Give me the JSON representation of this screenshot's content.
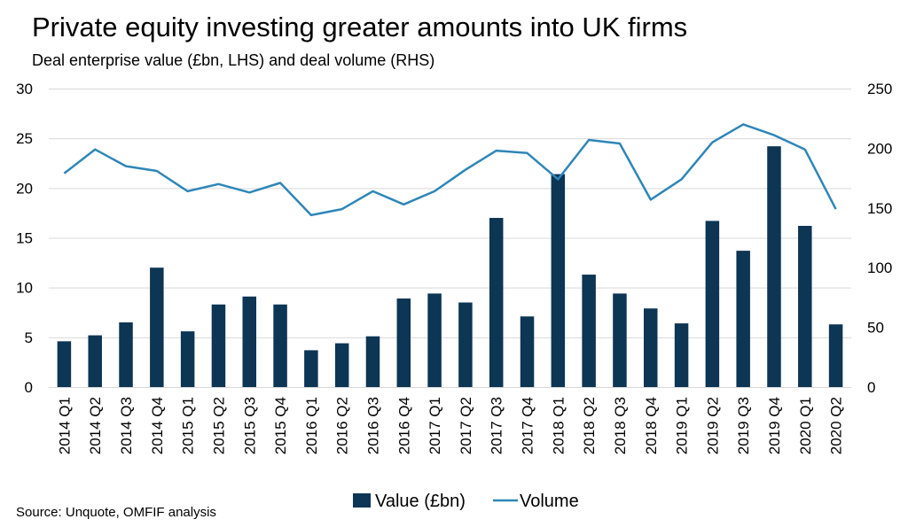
{
  "chart_data": {
    "type": "bar",
    "title": "Private equity investing greater amounts into UK firms",
    "subtitle": "Deal enterprise value (£bn, LHS) and deal volume (RHS)",
    "source": "Source: Unquote, OMFIF analysis",
    "categories": [
      "2014 Q1",
      "2014 Q2",
      "2014 Q3",
      "2014 Q4",
      "2015 Q1",
      "2015 Q2",
      "2015 Q3",
      "2015 Q4",
      "2016 Q1",
      "2016 Q2",
      "2016 Q3",
      "2016 Q4",
      "2017 Q1",
      "2017 Q2",
      "2017 Q3",
      "2017 Q4",
      "2018 Q1",
      "2018 Q2",
      "2018 Q3",
      "2018 Q4",
      "2019 Q1",
      "2019 Q2",
      "2019 Q3",
      "2019 Q4",
      "2020 Q1",
      "2020 Q2"
    ],
    "y_left": {
      "min": 0,
      "max": 30,
      "ticks": [
        "0",
        "5",
        "10",
        "15",
        "20",
        "25",
        "30"
      ]
    },
    "y_right": {
      "min": 0,
      "max": 250,
      "ticks": [
        "0",
        "50",
        "100",
        "150",
        "200",
        "250"
      ]
    },
    "grid": true,
    "legend_position": "bottom",
    "series": [
      {
        "name": "Value (£bn)",
        "type": "bar",
        "axis": "left",
        "color": "#0d3554",
        "values": [
          4.6,
          5.2,
          6.5,
          12.0,
          5.6,
          8.3,
          9.1,
          8.3,
          3.7,
          4.4,
          5.1,
          8.9,
          9.4,
          8.5,
          17.0,
          7.1,
          21.4,
          11.3,
          9.4,
          7.9,
          6.4,
          16.7,
          13.7,
          24.2,
          16.2,
          6.3
        ]
      },
      {
        "name": "Volume",
        "type": "line",
        "axis": "right",
        "color": "#2e86b8",
        "values": [
          179,
          199,
          185,
          181,
          164,
          170,
          163,
          171,
          144,
          149,
          164,
          153,
          164,
          182,
          198,
          196,
          174,
          207,
          204,
          157,
          174,
          205,
          220,
          211,
          199,
          149
        ]
      }
    ]
  }
}
